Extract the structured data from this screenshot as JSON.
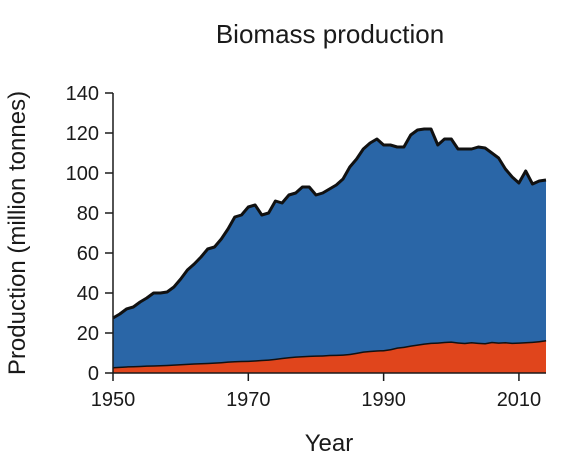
{
  "chart_data": {
    "type": "area",
    "stacked": true,
    "title": "Biomass production",
    "xlabel": "Year",
    "ylabel": "Production (million tonnes)",
    "xlim": [
      1950,
      2014
    ],
    "ylim": [
      0,
      140
    ],
    "xticks": [
      1950,
      1970,
      1990,
      2010
    ],
    "yticks": [
      0,
      20,
      40,
      60,
      80,
      100,
      120,
      140
    ],
    "grid": false,
    "legend": "none",
    "x": [
      1950,
      1951,
      1952,
      1953,
      1954,
      1955,
      1956,
      1957,
      1958,
      1959,
      1960,
      1961,
      1962,
      1963,
      1964,
      1965,
      1966,
      1967,
      1968,
      1969,
      1970,
      1971,
      1972,
      1973,
      1974,
      1975,
      1976,
      1977,
      1978,
      1979,
      1980,
      1981,
      1982,
      1983,
      1984,
      1985,
      1986,
      1987,
      1988,
      1989,
      1990,
      1991,
      1992,
      1993,
      1994,
      1995,
      1996,
      1997,
      1998,
      1999,
      2000,
      2001,
      2002,
      2003,
      2004,
      2005,
      2006,
      2007,
      2008,
      2009,
      2010,
      2011,
      2012,
      2013,
      2014
    ],
    "series": [
      {
        "color": "#e0451c",
        "values": [
          3,
          3.2,
          3.4,
          3.5,
          3.6,
          3.8,
          3.9,
          4,
          4.1,
          4.3,
          4.5,
          4.7,
          4.9,
          5,
          5.1,
          5.3,
          5.5,
          5.8,
          6,
          6.1,
          6.2,
          6.4,
          6.6,
          6.8,
          7.2,
          7.6,
          8,
          8.3,
          8.5,
          8.7,
          8.8,
          8.9,
          9.1,
          9.2,
          9.3,
          9.6,
          10.2,
          10.8,
          11.1,
          11.4,
          11.5,
          12,
          12.8,
          13.2,
          13.8,
          14.3,
          14.8,
          15.2,
          15.3,
          15.6,
          15.8,
          15.4,
          15.1,
          15.5,
          15.2,
          15,
          15.6,
          15.3,
          15.5,
          15.2,
          15.3,
          15.5,
          15.7,
          16,
          16.5
        ]
      },
      {
        "color": "#2a66a7",
        "values": [
          24.5,
          26.3,
          28.6,
          29.5,
          31.9,
          33.7,
          36.1,
          36,
          36.4,
          38.7,
          42.5,
          46.8,
          49.6,
          53,
          56.9,
          57.7,
          61.5,
          66.2,
          72,
          72.9,
          76.8,
          77.6,
          72.4,
          73.2,
          78.8,
          77.4,
          81,
          81.7,
          84.5,
          84.3,
          80.2,
          81.1,
          82.9,
          84.8,
          87.7,
          93.4,
          96.8,
          101.2,
          103.9,
          105.6,
          102.5,
          102,
          100.2,
          99.8,
          105.2,
          107.2,
          107.2,
          106.8,
          98.7,
          101.4,
          101.2,
          96.6,
          96.9,
          96.5,
          97.8,
          97.5,
          94.4,
          92.2,
          86.5,
          82.8,
          79.7,
          85.5,
          78.8,
          80,
          80
        ]
      }
    ]
  }
}
